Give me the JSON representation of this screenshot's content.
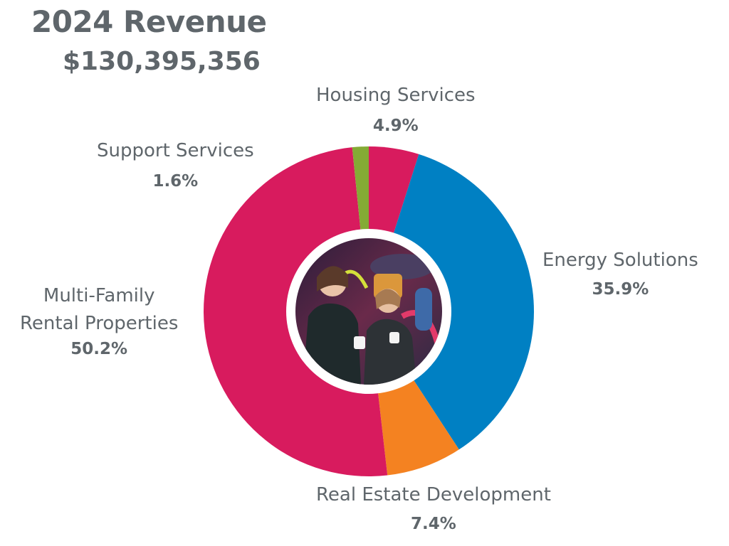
{
  "title": "2024 Revenue",
  "total": "$130,395,356",
  "chart_data": {
    "type": "pie",
    "donut": true,
    "total": "$130,395,356",
    "slices": [
      {
        "name": "Housing Services",
        "label": "4.9%",
        "value": 4.9,
        "color": "#d81b5e"
      },
      {
        "name": "Energy Solutions",
        "label": "35.9%",
        "value": 35.9,
        "color": "#0080c3"
      },
      {
        "name": "Real Estate Development",
        "label": "7.4%",
        "value": 7.4,
        "color": "#f48221"
      },
      {
        "name": "Multi-Family Rental Properties",
        "label": "50.2%",
        "value": 50.2,
        "color": "#d81b5e"
      },
      {
        "name": "Support Services",
        "label": "1.6%",
        "value": 1.6,
        "color": "#84ab35"
      }
    ]
  },
  "labels": {
    "housing": {
      "name": "Housing Services",
      "pct": "4.9%"
    },
    "energy": {
      "name": "Energy Solutions",
      "pct": "35.9%"
    },
    "real_estate": {
      "name": "Real Estate Development",
      "pct": "7.4%"
    },
    "multi_family": {
      "name_line1": "Multi-Family",
      "name_line2": "Rental Properties",
      "pct": "50.2%"
    },
    "support": {
      "name": "Support Services",
      "pct": "1.6%"
    }
  },
  "photo": {
    "description_icon": "people-photo-icon"
  }
}
